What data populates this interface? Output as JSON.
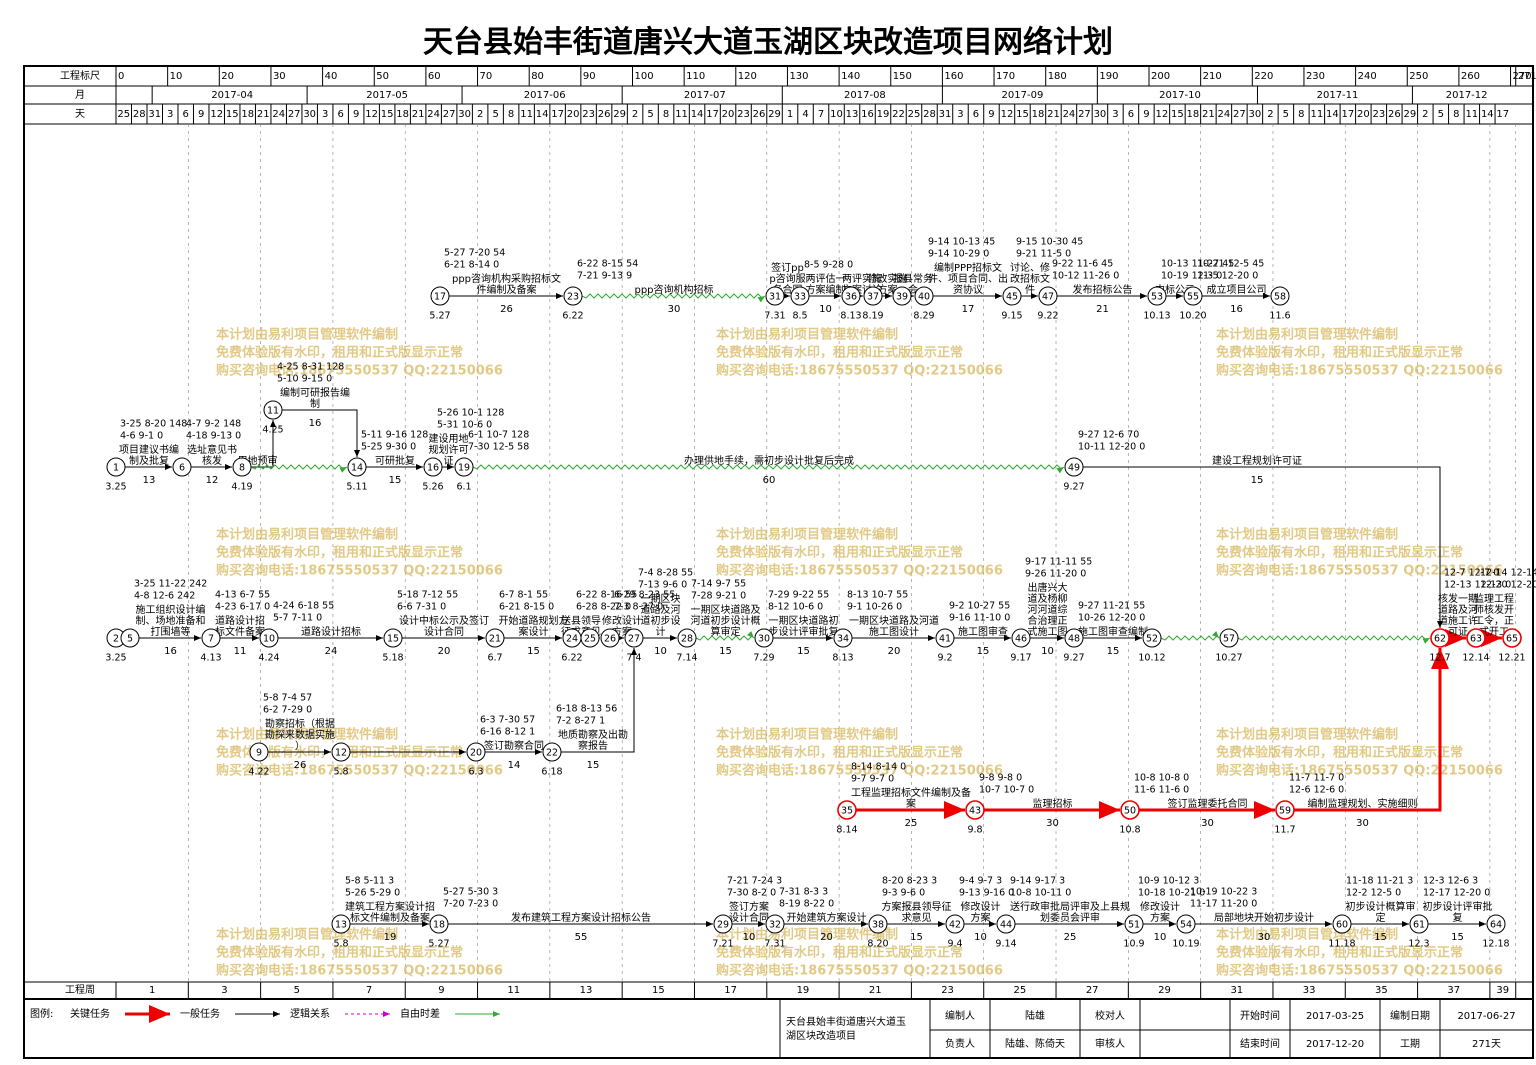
{
  "title": "天台县始丰街道唐兴大道玉湖区块改造项目网络计划",
  "scale": {
    "label": "工程标尺",
    "ticks": [
      0,
      10,
      20,
      30,
      40,
      50,
      60,
      70,
      80,
      90,
      100,
      110,
      120,
      130,
      140,
      150,
      160,
      170,
      180,
      190,
      200,
      210,
      220,
      230,
      240,
      250,
      260,
      270,
      271
    ]
  },
  "months": {
    "label": "月",
    "items": [
      "2017-04",
      "2017-05",
      "2017-06",
      "2017-07",
      "2017-08",
      "2017-09",
      "2017-10",
      "2017-11",
      "2017-12"
    ]
  },
  "days": {
    "label": "天",
    "items": [
      "25",
      "28",
      "31",
      "3",
      "6",
      "9",
      "12",
      "15",
      "18",
      "21",
      "24",
      "27",
      "30",
      "3",
      "6",
      "9",
      "12",
      "15",
      "18",
      "21",
      "24",
      "27",
      "30",
      "2",
      "5",
      "8",
      "11",
      "14",
      "17",
      "20",
      "23",
      "26",
      "29",
      "2",
      "5",
      "8",
      "11",
      "14",
      "17",
      "20",
      "23",
      "26",
      "29",
      "1",
      "4",
      "7",
      "10",
      "13",
      "16",
      "19",
      "22",
      "25",
      "28",
      "31",
      "3",
      "6",
      "9",
      "12",
      "15",
      "18",
      "21",
      "24",
      "27",
      "30",
      "3",
      "6",
      "9",
      "12",
      "15",
      "18",
      "21",
      "24",
      "27",
      "30",
      "2",
      "5",
      "8",
      "11",
      "14",
      "17",
      "20",
      "23",
      "26",
      "29",
      "2",
      "5",
      "8",
      "11",
      "14",
      "17"
    ]
  },
  "weeks": {
    "label": "工程周",
    "items": [
      "1",
      "3",
      "5",
      "7",
      "9",
      "11",
      "13",
      "15",
      "17",
      "19",
      "21",
      "23",
      "25",
      "27",
      "29",
      "31",
      "33",
      "35",
      "37",
      "39"
    ]
  },
  "watermark": [
    "本计划由易利项目管理软件编制",
    "免费体验版有水印，租用和正式版显示正常",
    "购买咨询电话:18675550537 QQ:22150066"
  ],
  "nodes": [
    {
      "id": "1",
      "date": "3.25"
    },
    {
      "id": "2",
      "date": "3.25"
    },
    {
      "id": "5"
    },
    {
      "id": "6"
    },
    {
      "id": "7",
      "date": "4.13"
    },
    {
      "id": "8",
      "date": "4.19"
    },
    {
      "id": "9",
      "date": "4.22"
    },
    {
      "id": "10",
      "date": "4.24"
    },
    {
      "id": "11",
      "date": "4.25"
    },
    {
      "id": "12",
      "date": "5.8"
    },
    {
      "id": "13",
      "date": "5.8"
    },
    {
      "id": "14",
      "date": "5.11"
    },
    {
      "id": "15",
      "date": "5.18"
    },
    {
      "id": "16",
      "date": "5.26"
    },
    {
      "id": "17",
      "date": "5.27"
    },
    {
      "id": "18",
      "date": "5.27"
    },
    {
      "id": "19",
      "date": "6.1"
    },
    {
      "id": "20",
      "date": "6.3"
    },
    {
      "id": "21",
      "date": "6.7"
    },
    {
      "id": "22",
      "date": "6.18"
    },
    {
      "id": "23",
      "date": "6.22"
    },
    {
      "id": "24",
      "date": "6.22"
    },
    {
      "id": "25"
    },
    {
      "id": "26"
    },
    {
      "id": "27",
      "date": "7.4"
    },
    {
      "id": "28",
      "date": "7.14"
    },
    {
      "id": "29",
      "date": "7.21"
    },
    {
      "id": "30",
      "date": "7.29"
    },
    {
      "id": "31",
      "date": "7.31"
    },
    {
      "id": "32",
      "date": "7.31"
    },
    {
      "id": "33",
      "date": "8.5"
    },
    {
      "id": "34",
      "date": "8.13"
    },
    {
      "id": "35",
      "date": "8.14"
    },
    {
      "id": "36",
      "date": "8.13"
    },
    {
      "id": "37",
      "date": "8.19"
    },
    {
      "id": "38",
      "date": "8.20"
    },
    {
      "id": "39"
    },
    {
      "id": "40",
      "date": "8.29"
    },
    {
      "id": "41",
      "date": "9.2"
    },
    {
      "id": "42",
      "date": "9.4"
    },
    {
      "id": "43",
      "date": "9.8"
    },
    {
      "id": "44",
      "date": "9.14"
    },
    {
      "id": "45",
      "date": "9.15"
    },
    {
      "id": "46",
      "date": "9.17"
    },
    {
      "id": "47",
      "date": "9.22"
    },
    {
      "id": "48",
      "date": "9.27"
    },
    {
      "id": "49",
      "date": "9.27"
    },
    {
      "id": "50",
      "date": "10.8"
    },
    {
      "id": "51",
      "date": "10.9"
    },
    {
      "id": "52",
      "date": "10.12"
    },
    {
      "id": "53",
      "date": "10.13"
    },
    {
      "id": "54",
      "date": "10.19"
    },
    {
      "id": "55",
      "date": "10.20"
    },
    {
      "id": "57",
      "date": "10.27"
    },
    {
      "id": "58",
      "date": "11.6"
    },
    {
      "id": "59",
      "date": "11.7"
    },
    {
      "id": "60",
      "date": "11.18"
    },
    {
      "id": "61",
      "date": "12.3"
    },
    {
      "id": "62",
      "date": "12.7"
    },
    {
      "id": "63",
      "date": "12.14"
    },
    {
      "id": "64",
      "date": "12.18"
    },
    {
      "id": "65",
      "date": "12.21"
    }
  ],
  "activities": [
    {
      "from": "17",
      "to": "23",
      "kind": "normal",
      "name": "ppp咨询机构采购招标文件编制及备案",
      "duration": "26",
      "times": [
        "5-27 7-20 54",
        "6-21 8-14 0"
      ]
    },
    {
      "from": "23",
      "to": "31",
      "kind": "float",
      "name": "ppp咨询机构招标",
      "duration": "30",
      "times": [
        "6-22 8-15 54",
        "7-21 9-13 9"
      ]
    },
    {
      "from": "31",
      "to": "33",
      "kind": "normal",
      "name": "签订ppp咨询服务合同"
    },
    {
      "from": "33",
      "to": "36",
      "kind": "normal",
      "name": "两评估一方案编制",
      "duration": "10",
      "times": [
        "8-5 9-28 0"
      ]
    },
    {
      "from": "36",
      "to": "37",
      "kind": "normal",
      "name": "两评实施方案讨论"
    },
    {
      "from": "37",
      "to": "39",
      "kind": "normal",
      "name": "修改实施方案"
    },
    {
      "from": "39",
      "to": "40",
      "kind": "normal",
      "name": "报县常务会"
    },
    {
      "from": "40",
      "to": "45",
      "kind": "normal",
      "name": "编制PPP招标文件、项目合同、出资协议",
      "duration": "17",
      "times": [
        "9-14 10-13 45",
        "9-14 10-29 0"
      ]
    },
    {
      "from": "45",
      "to": "47",
      "kind": "normal",
      "name": "讨论、修改招标文件",
      "times": [
        "9-15 10-30 45",
        "9-21 11-5 0"
      ]
    },
    {
      "from": "47",
      "to": "53",
      "kind": "normal",
      "name": "发布招标公告",
      "duration": "21",
      "times": [
        "9-22 11-6 45",
        "10-12 11-26 0"
      ]
    },
    {
      "from": "53",
      "to": "55",
      "kind": "normal",
      "name": "中标公示",
      "times": [
        "10-13 11-27 45",
        "10-19 12-3 0"
      ]
    },
    {
      "from": "55",
      "to": "58",
      "kind": "normal",
      "name": "成立项目公司",
      "duration": "16",
      "times": [
        "10-21 12-5 45",
        "11-5 12-20 0"
      ]
    },
    {
      "from": "1",
      "to": "6",
      "kind": "normal",
      "name": "项目建议书编制及批复",
      "duration": "13",
      "times": [
        "3-25 8-20 148",
        "4-6 9-1 0"
      ]
    },
    {
      "from": "6",
      "to": "8",
      "kind": "normal",
      "name": "选址意见书核发",
      "duration": "12",
      "times": [
        "4-7 9-2 148",
        "4-18 9-13 0"
      ]
    },
    {
      "from": "8",
      "to": "11",
      "kind": "normal",
      "name": "用地预审"
    },
    {
      "from": "11",
      "to": "14",
      "kind": "normal",
      "name": "编制可研报告编制",
      "duration": "16",
      "times": [
        "4-25 8-31 128",
        "5-10 9-15 0"
      ]
    },
    {
      "from": "8",
      "to": "14",
      "kind": "float"
    },
    {
      "from": "14",
      "to": "16",
      "kind": "normal",
      "name": "可研批复",
      "duration": "15",
      "times": [
        "5-11 9-16 128",
        "5-25 9-30 0"
      ]
    },
    {
      "from": "16",
      "to": "19",
      "kind": "normal",
      "name": "建设用地规划许可证",
      "times": [
        "5-26 10-1 128",
        "5-31 10-6 0"
      ]
    },
    {
      "from": "19",
      "to": "49",
      "kind": "float",
      "name": "办理供地手续，需初步设计批复后完成",
      "duration": "60",
      "times": [
        "6-1 10-7 128",
        "7-30 12-5 58"
      ]
    },
    {
      "from": "49",
      "to": "62",
      "kind": "normal",
      "name": "建设工程规划许可证",
      "duration": "15",
      "times": [
        "9-27 12-6 70",
        "10-11 12-20 0"
      ]
    },
    {
      "from": "2",
      "to": "5",
      "kind": "normal"
    },
    {
      "from": "5",
      "to": "7",
      "kind": "normal",
      "name": "施工组织设计编制、场地准备和打围墙等",
      "duration": "16",
      "times": [
        "3-25 11-22 242",
        "4-8 12-6 242"
      ]
    },
    {
      "from": "7",
      "to": "10",
      "kind": "normal",
      "name": "道路设计招标文件备案",
      "duration": "11",
      "times": [
        "4-13 6-7 55",
        "4-23 6-17 0"
      ]
    },
    {
      "from": "10",
      "to": "15",
      "kind": "normal",
      "name": "道路设计招标",
      "duration": "24",
      "times": [
        "4-24 6-18 55",
        "5-7 7-11 0"
      ]
    },
    {
      "from": "15",
      "to": "21",
      "kind": "normal",
      "name": "设计中标公示及签订设计合同",
      "duration": "20",
      "times": [
        "5-18 7-12 55",
        "6-6 7-31 0"
      ]
    },
    {
      "from": "21",
      "to": "24",
      "kind": "normal",
      "name": "开始道路规划方案设计",
      "duration": "15",
      "times": [
        "6-7 8-1 55",
        "6-21 8-15 0"
      ]
    },
    {
      "from": "24",
      "to": "25",
      "kind": "normal",
      "name": "送县领导征求意见",
      "times": [
        "6-22 8-16 55",
        "6-28 8-22 0"
      ]
    },
    {
      "from": "25",
      "to": "26",
      "kind": "normal"
    },
    {
      "from": "26",
      "to": "27",
      "kind": "normal",
      "name": "修改设计方案",
      "times": [
        "6-29 8-23 55",
        "7-3 8-27 0"
      ]
    },
    {
      "from": "27",
      "to": "28",
      "kind": "normal",
      "name": "一期区块道路及河道初步设计",
      "duration": "10",
      "times": [
        "7-4 8-28 55",
        "7-13 9-6 0"
      ]
    },
    {
      "from": "28",
      "to": "30",
      "kind": "float",
      "name": "一期区块道路及河道初步设计概算审定",
      "duration": "15",
      "times": [
        "7-14 9-7 55",
        "7-28 9-21 0"
      ]
    },
    {
      "from": "30",
      "to": "34",
      "kind": "normal",
      "name": "一期区块道路初步设计评审批复",
      "duration": "15",
      "times": [
        "7-29 9-22 55",
        "8-12 10-6 0"
      ]
    },
    {
      "from": "34",
      "to": "41",
      "kind": "normal",
      "name": "一期区块道路及河道施工图设计",
      "duration": "20",
      "times": [
        "8-13 10-7 55",
        "9-1 10-26 0"
      ]
    },
    {
      "from": "41",
      "to": "46",
      "kind": "normal",
      "name": "施工图审查",
      "duration": "15",
      "times": [
        "9-2 10-27 55",
        "9-16 11-10 0"
      ]
    },
    {
      "from": "46",
      "to": "48",
      "kind": "normal",
      "name": "出唐兴大道及杨柳河河道综合治理正式施工图",
      "duration": "10",
      "times": [
        "9-17 11-11 55",
        "9-26 11-20 0"
      ]
    },
    {
      "from": "48",
      "to": "52",
      "kind": "normal",
      "name": "施工图审查编制",
      "duration": "15",
      "times": [
        "9-27 11-21 55",
        "10-26 12-20 0"
      ]
    },
    {
      "from": "52",
      "to": "57",
      "kind": "float"
    },
    {
      "from": "57",
      "to": "62",
      "kind": "float"
    },
    {
      "from": "62",
      "to": "63",
      "kind": "critical",
      "name": "核发一期道路及河道施工许可证",
      "times": [
        "12-7 12-7 0",
        "12-13 12-13 0"
      ]
    },
    {
      "from": "63",
      "to": "65",
      "kind": "critical",
      "name": "监理工程师核发开工令，正式开工",
      "times": [
        "12-14 12-14 0",
        "12-20 12-20 0"
      ]
    },
    {
      "from": "9",
      "to": "12",
      "kind": "normal",
      "name": "勘察招标（根据勘探来数据实施）",
      "duration": "26",
      "times": [
        "5-8 7-4 57",
        "6-2 7-29 0"
      ]
    },
    {
      "from": "12",
      "to": "20",
      "kind": "normal"
    },
    {
      "from": "20",
      "to": "22",
      "kind": "normal",
      "name": "签订勘察合同",
      "duration": "14",
      "times": [
        "6-3 7-30 57",
        "6-16 8-12 1"
      ]
    },
    {
      "from": "22",
      "to": "27",
      "kind": "normal",
      "name": "地质勘察及出勘察报告",
      "duration": "15",
      "times": [
        "6-18 8-13 56",
        "7-2 8-27 1"
      ]
    },
    {
      "from": "35",
      "to": "43",
      "kind": "critical",
      "name": "工程监理招标文件编制及备案",
      "duration": "25",
      "times": [
        "8-14 8-14 0",
        "9-7 9-7 0"
      ]
    },
    {
      "from": "43",
      "to": "50",
      "kind": "critical",
      "name": "监理招标",
      "duration": "30",
      "times": [
        "9-8 9-8 0",
        "10-7 10-7 0"
      ]
    },
    {
      "from": "50",
      "to": "59",
      "kind": "critical",
      "name": "签订监理委托合同",
      "duration": "30",
      "times": [
        "10-8 10-8 0",
        "11-6 11-6 0"
      ]
    },
    {
      "from": "59",
      "to": "62",
      "kind": "critical",
      "name": "编制监理规划、实施细则",
      "duration": "30",
      "times": [
        "11-7 11-7 0",
        "12-6 12-6 0"
      ]
    },
    {
      "from": "13",
      "to": "18",
      "kind": "normal",
      "name": "建筑工程方案设计招标文件编制及备案",
      "duration": "19",
      "times": [
        "5-8 5-11 3",
        "5-26 5-29 0"
      ]
    },
    {
      "from": "18",
      "to": "29",
      "kind": "normal",
      "name": "发布建筑工程方案设计招标公告",
      "duration": "55",
      "times": [
        "5-27 5-30 3",
        "7-20 7-23 0"
      ]
    },
    {
      "from": "29",
      "to": "32",
      "kind": "normal",
      "name": "签订方案设计合同",
      "duration": "10",
      "times": [
        "7-21 7-24 3",
        "7-30 8-2 0"
      ]
    },
    {
      "from": "32",
      "to": "38",
      "kind": "normal",
      "name": "开始建筑方案设计",
      "duration": "20",
      "times": [
        "7-31 8-3 3",
        "8-19 8-22 0"
      ]
    },
    {
      "from": "38",
      "to": "42",
      "kind": "normal",
      "name": "方案报县领导征求意见",
      "duration": "15",
      "times": [
        "8-20 8-23 3",
        "9-3 9-6 0"
      ]
    },
    {
      "from": "42",
      "to": "44",
      "kind": "normal",
      "name": "修改设计方案",
      "duration": "10",
      "times": [
        "9-4 9-7 3",
        "9-13 9-16 0"
      ]
    },
    {
      "from": "44",
      "to": "51",
      "kind": "normal",
      "name": "送行政审批局评审及上县规划委员会评审",
      "duration": "25",
      "times": [
        "9-14 9-17 3",
        "10-8 10-11 0"
      ]
    },
    {
      "from": "51",
      "to": "54",
      "kind": "normal",
      "name": "修改设计方案",
      "duration": "10",
      "times": [
        "10-9 10-12 3",
        "10-18 10-21 0"
      ]
    },
    {
      "from": "54",
      "to": "60",
      "kind": "normal",
      "name": "局部地块开始初步设计",
      "duration": "30",
      "times": [
        "10-19 10-22 3",
        "11-17 11-20 0"
      ]
    },
    {
      "from": "60",
      "to": "61",
      "kind": "normal",
      "name": "初步设计概算审定",
      "duration": "15",
      "times": [
        "11-18 11-21 3",
        "12-2 12-5 0"
      ]
    },
    {
      "from": "61",
      "to": "64",
      "kind": "normal",
      "name": "初步设计评审批复",
      "duration": "15",
      "times": [
        "12-3 12-6 3",
        "12-17 12-20 0"
      ]
    }
  ],
  "legend": {
    "label": "图例:",
    "items": [
      "关键任务",
      "一般任务",
      "逻辑关系",
      "自由时差"
    ]
  },
  "footer": {
    "project": "天台县始丰街道唐兴大道玉湖区块改造项目",
    "rows": [
      [
        "编制人",
        "陆雄",
        "校对人",
        "",
        "开始时间",
        "2017-03-25",
        "编制日期",
        "2017-06-27"
      ],
      [
        "负责人",
        "陆雄、陈倚天",
        "审核人",
        "",
        "结束时间",
        "2017-12-20",
        "工期",
        "271天"
      ]
    ]
  }
}
